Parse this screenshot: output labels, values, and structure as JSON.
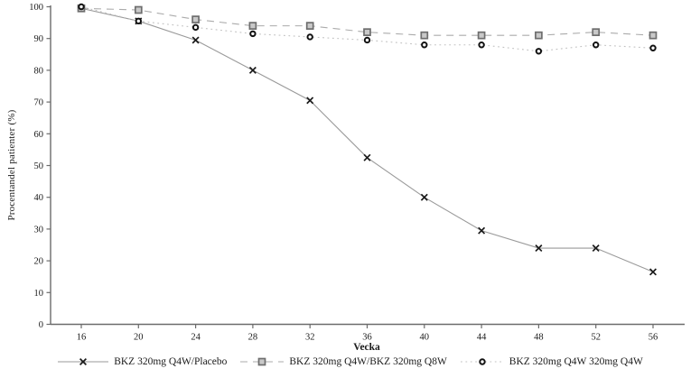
{
  "chart_data": {
    "type": "line",
    "title": "",
    "xlabel": "Vecka",
    "ylabel": "Procentandel patienter (%)",
    "grid": false,
    "legend_position": "bottom",
    "ylim": [
      0,
      100
    ],
    "y_ticks": [
      0,
      10,
      20,
      30,
      40,
      50,
      60,
      70,
      80,
      90,
      100
    ],
    "x_ticks": [
      16,
      20,
      24,
      28,
      32,
      36,
      40,
      44,
      48,
      52,
      56
    ],
    "x": [
      16,
      20,
      24,
      28,
      32,
      36,
      40,
      44,
      48,
      52,
      56
    ],
    "colors": {
      "axis": "#6b6b6b",
      "tick_text": "#1a1a1a",
      "solid_line": "#9a9a9a",
      "dashed_line": "#ababab",
      "dotted_line": "#c2c2c2",
      "x_marker": "#1a1a1a",
      "square_marker_fill": "#c9c9c9",
      "square_marker_stroke": "#6e6e6e",
      "circle_marker_stroke": "#111111"
    },
    "series": [
      {
        "name": "BKZ 320mg Q4W/Placebo",
        "marker": "x",
        "line": "solid",
        "values": [
          99.5,
          95.5,
          89.5,
          80,
          70.5,
          52.5,
          40,
          29.5,
          24,
          24,
          16.5
        ]
      },
      {
        "name": "BKZ 320mg Q4W/BKZ 320mg Q8W",
        "marker": "square",
        "line": "dashed",
        "values": [
          99.5,
          99,
          96,
          94,
          94,
          92,
          91,
          91,
          91,
          92,
          91
        ]
      },
      {
        "name": "BKZ 320mg Q4W 320mg Q4W",
        "marker": "circle",
        "line": "dotted",
        "values": [
          100,
          95.5,
          93.5,
          91.5,
          90.5,
          89.5,
          88,
          88,
          86,
          88,
          87
        ]
      }
    ]
  }
}
